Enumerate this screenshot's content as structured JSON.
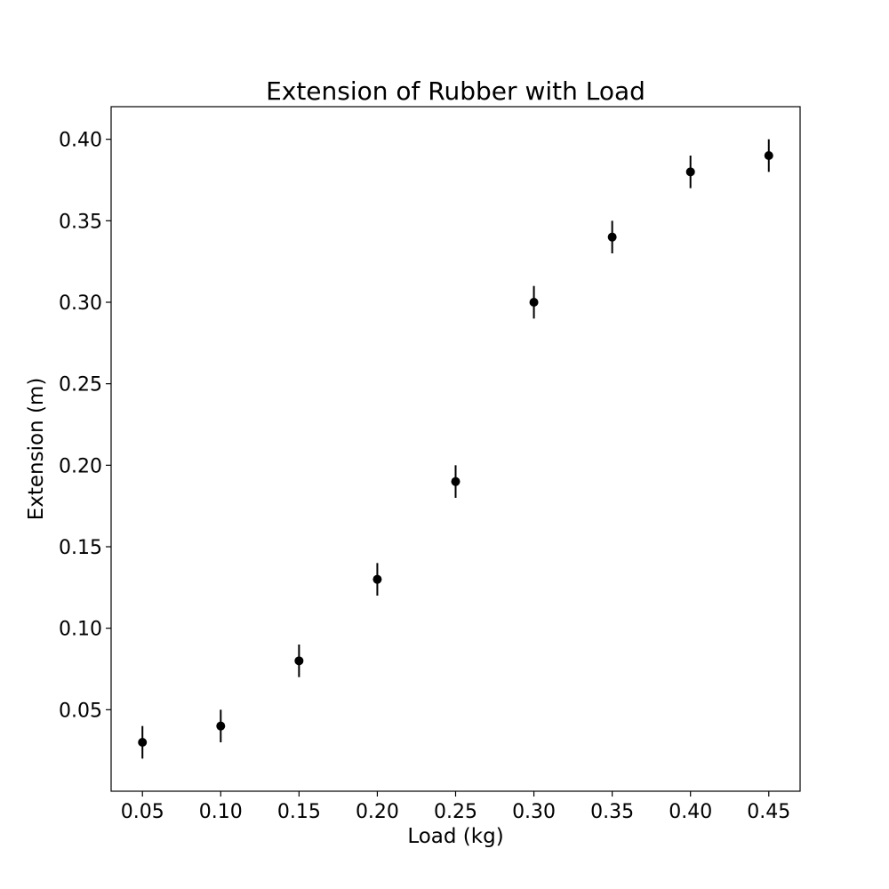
{
  "chart_data": {
    "type": "scatter",
    "title": "Extension of Rubber with Load",
    "xlabel": "Load (kg)",
    "ylabel": "Extension (m)",
    "xlim": [
      0.03,
      0.47
    ],
    "ylim": [
      0.0,
      0.42
    ],
    "xticks": [
      0.05,
      0.1,
      0.15,
      0.2,
      0.25,
      0.3,
      0.35,
      0.4,
      0.45
    ],
    "xtick_labels": [
      "0.05",
      "0.10",
      "0.15",
      "0.20",
      "0.25",
      "0.30",
      "0.35",
      "0.40",
      "0.45"
    ],
    "yticks": [
      0.05,
      0.1,
      0.15,
      0.2,
      0.25,
      0.3,
      0.35,
      0.4
    ],
    "ytick_labels": [
      "0.05",
      "0.10",
      "0.15",
      "0.20",
      "0.25",
      "0.30",
      "0.35",
      "0.40"
    ],
    "grid": false,
    "marker_color": "#000000",
    "series": [
      {
        "x": [
          0.05,
          0.1,
          0.15,
          0.2,
          0.25,
          0.3,
          0.35,
          0.4,
          0.45
        ],
        "y": [
          0.03,
          0.04,
          0.08,
          0.13,
          0.19,
          0.3,
          0.34,
          0.38,
          0.39
        ],
        "yerr": [
          0.01,
          0.01,
          0.01,
          0.01,
          0.01,
          0.01,
          0.01,
          0.01,
          0.01
        ]
      }
    ]
  }
}
